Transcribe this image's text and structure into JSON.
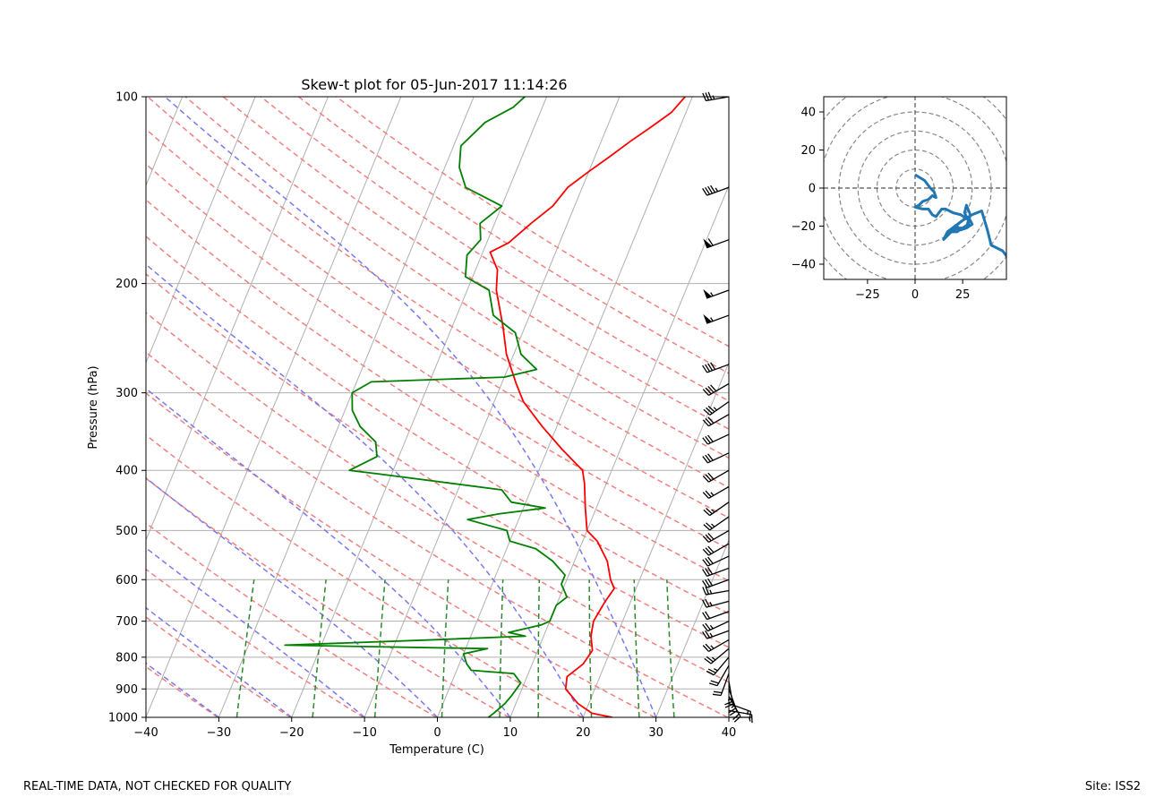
{
  "footer": {
    "disclaimer": "REAL-TIME DATA, NOT CHECKED FOR QUALITY",
    "site": "Site: ISS2"
  },
  "colors": {
    "temperature": "#ff0000",
    "dewpoint": "#008000",
    "dry_adiabat": "#f08080",
    "moist_adiabat": "#7878f0",
    "mixing_ratio": "#2a8a2a",
    "hodograph": "#1f77b4",
    "grid": "#b0b0b0",
    "barb": "#000000"
  },
  "chart_data": [
    {
      "type": "skew-t",
      "title": "Skew-t plot for 05-Jun-2017 11:14:26",
      "xlabel": "Temperature (C)",
      "ylabel": "Pressure (hPa)",
      "xlim": [
        -40,
        40
      ],
      "ylim": [
        1000,
        100
      ],
      "x_ticks": [
        -40,
        -30,
        -20,
        -10,
        0,
        10,
        20,
        30,
        40
      ],
      "y_ticks": [
        100,
        200,
        300,
        400,
        500,
        600,
        700,
        800,
        900,
        1000
      ],
      "grid": true,
      "dry_adiabats_theta_K": [
        243,
        253,
        263,
        273,
        283,
        293,
        303,
        313,
        323,
        333,
        343,
        353,
        363,
        373,
        383,
        393,
        403,
        413,
        423,
        433
      ],
      "moist_adiabats_start_C": [
        -30,
        -20,
        -10,
        0,
        10,
        20,
        30
      ],
      "mixing_ratio_lines_gkg": [
        0.4,
        1,
        2,
        4,
        7,
        10,
        16,
        24,
        32
      ],
      "series": [
        {
          "name": "temperature",
          "points": [
            [
              24,
              1000
            ],
            [
              21,
              985
            ],
            [
              18.5,
              950
            ],
            [
              16,
              900
            ],
            [
              15.5,
              860
            ],
            [
              17,
              820
            ],
            [
              17.5,
              780
            ],
            [
              16.5,
              740
            ],
            [
              16,
              700
            ],
            [
              16.5,
              650
            ],
            [
              17,
              620
            ],
            [
              16,
              600
            ],
            [
              14.5,
              560
            ],
            [
              12,
              520
            ],
            [
              10,
              500
            ],
            [
              8.5,
              460
            ],
            [
              7,
              420
            ],
            [
              6,
              400
            ],
            [
              2,
              370
            ],
            [
              -2,
              340
            ],
            [
              -6,
              310
            ],
            [
              -8,
              290
            ],
            [
              -11,
              260
            ],
            [
              -13,
              235
            ],
            [
              -16,
              205
            ],
            [
              -17,
              190
            ],
            [
              -19,
              178
            ],
            [
              -17,
              172
            ],
            [
              -15,
              160
            ],
            [
              -13,
              150
            ],
            [
              -12,
              140
            ],
            [
              -10,
              132
            ],
            [
              -8,
              125
            ],
            [
              -6,
              118
            ],
            [
              -4,
              112
            ],
            [
              -2,
              106
            ],
            [
              -1,
              100
            ]
          ]
        },
        {
          "name": "dewpoint",
          "points": [
            [
              7,
              1000
            ],
            [
              7.5,
              985
            ],
            [
              8.5,
              950
            ],
            [
              9,
              920
            ],
            [
              9.5,
              880
            ],
            [
              8,
              850
            ],
            [
              2,
              840
            ],
            [
              1,
              820
            ],
            [
              0,
              790
            ],
            [
              3,
              775
            ],
            [
              -25,
              765
            ],
            [
              -5,
              750
            ],
            [
              7.5,
              740
            ],
            [
              5,
              730
            ],
            [
              9,
              710
            ],
            [
              10,
              700
            ],
            [
              10,
              660
            ],
            [
              11,
              640
            ],
            [
              9.5,
              610
            ],
            [
              9.5,
              590
            ],
            [
              7,
              560
            ],
            [
              4,
              535
            ],
            [
              0,
              520
            ],
            [
              -1,
              500
            ],
            [
              -4,
              490
            ],
            [
              -7,
              480
            ],
            [
              -3,
              470
            ],
            [
              3,
              460
            ],
            [
              -2,
              450
            ],
            [
              -4,
              430
            ],
            [
              -22,
              405
            ],
            [
              -26,
              400
            ],
            [
              -23,
              380
            ],
            [
              -24,
              360
            ],
            [
              -27,
              340
            ],
            [
              -29,
              320
            ],
            [
              -30,
              300
            ],
            [
              -28,
              288
            ],
            [
              -10,
              283
            ],
            [
              -6,
              275
            ],
            [
              -9,
              260
            ],
            [
              -11,
              240
            ],
            [
              -15,
              225
            ],
            [
              -17,
              205
            ],
            [
              -21,
              195
            ],
            [
              -22,
              180
            ],
            [
              -21,
              170
            ],
            [
              -22,
              160
            ],
            [
              -20,
              150
            ],
            [
              -26,
              140
            ],
            [
              -28,
              130
            ],
            [
              -29,
              120
            ],
            [
              -27,
              110
            ],
            [
              -24,
              104
            ],
            [
              -23,
              100
            ]
          ]
        }
      ]
    },
    {
      "type": "hodograph",
      "xlim": [
        -48,
        48
      ],
      "ylim": [
        -48,
        48
      ],
      "x_ticks": [
        -25,
        0,
        25
      ],
      "y_ticks": [
        -40,
        -20,
        0,
        20,
        40
      ],
      "ring_radii": [
        10,
        20,
        30,
        40,
        50,
        60,
        70
      ],
      "points": [
        [
          0,
          7
        ],
        [
          5,
          4
        ],
        [
          8,
          0
        ],
        [
          10,
          -2
        ],
        [
          11,
          -5
        ],
        [
          9,
          -4
        ],
        [
          7,
          -6
        ],
        [
          4,
          -7
        ],
        [
          2,
          -9
        ],
        [
          0,
          -10
        ],
        [
          4,
          -11
        ],
        [
          7,
          -11
        ],
        [
          9,
          -14
        ],
        [
          11,
          -15
        ],
        [
          14,
          -11
        ],
        [
          16,
          -11
        ],
        [
          20,
          -13
        ],
        [
          24,
          -14
        ],
        [
          27,
          -16
        ],
        [
          29,
          -17
        ],
        [
          30,
          -19
        ],
        [
          27,
          -21
        ],
        [
          24,
          -22
        ],
        [
          22,
          -20
        ],
        [
          19,
          -22
        ],
        [
          24,
          -21
        ],
        [
          27,
          -21
        ],
        [
          28,
          -17
        ],
        [
          26,
          -13
        ],
        [
          27,
          -9
        ],
        [
          29,
          -14
        ],
        [
          28,
          -19
        ],
        [
          25,
          -21
        ],
        [
          22,
          -23
        ],
        [
          19,
          -23
        ],
        [
          15,
          -27
        ],
        [
          17,
          -23
        ],
        [
          21,
          -20
        ],
        [
          25,
          -17
        ],
        [
          30,
          -14
        ],
        [
          35,
          -12
        ],
        [
          38,
          -22
        ],
        [
          40,
          -30
        ],
        [
          46,
          -33
        ],
        [
          49,
          -37
        ]
      ]
    },
    {
      "type": "wind-barbs",
      "unit": "knots",
      "levels": [
        {
          "p": 1000,
          "speed": 5,
          "dir": 90
        },
        {
          "p": 975,
          "speed": 10,
          "dir": 100
        },
        {
          "p": 950,
          "speed": 15,
          "dir": 110
        },
        {
          "p": 925,
          "speed": 20,
          "dir": 150
        },
        {
          "p": 900,
          "speed": 25,
          "dir": 160
        },
        {
          "p": 875,
          "speed": 25,
          "dir": 170
        },
        {
          "p": 850,
          "speed": 20,
          "dir": 200
        },
        {
          "p": 825,
          "speed": 20,
          "dir": 210
        },
        {
          "p": 800,
          "speed": 25,
          "dir": 220
        },
        {
          "p": 775,
          "speed": 25,
          "dir": 230
        },
        {
          "p": 750,
          "speed": 25,
          "dir": 240
        },
        {
          "p": 725,
          "speed": 25,
          "dir": 250
        },
        {
          "p": 700,
          "speed": 25,
          "dir": 245
        },
        {
          "p": 675,
          "speed": 20,
          "dir": 250
        },
        {
          "p": 650,
          "speed": 25,
          "dir": 255
        },
        {
          "p": 625,
          "speed": 25,
          "dir": 260
        },
        {
          "p": 600,
          "speed": 30,
          "dir": 250
        },
        {
          "p": 575,
          "speed": 30,
          "dir": 250
        },
        {
          "p": 550,
          "speed": 30,
          "dir": 245
        },
        {
          "p": 525,
          "speed": 30,
          "dir": 240
        },
        {
          "p": 500,
          "speed": 30,
          "dir": 240
        },
        {
          "p": 475,
          "speed": 25,
          "dir": 235
        },
        {
          "p": 450,
          "speed": 25,
          "dir": 235
        },
        {
          "p": 425,
          "speed": 25,
          "dir": 240
        },
        {
          "p": 400,
          "speed": 30,
          "dir": 240
        },
        {
          "p": 375,
          "speed": 30,
          "dir": 245
        },
        {
          "p": 350,
          "speed": 30,
          "dir": 245
        },
        {
          "p": 325,
          "speed": 30,
          "dir": 240
        },
        {
          "p": 310,
          "speed": 35,
          "dir": 235
        },
        {
          "p": 290,
          "speed": 40,
          "dir": 240
        },
        {
          "p": 270,
          "speed": 40,
          "dir": 250
        },
        {
          "p": 225,
          "speed": 55,
          "dir": 250
        },
        {
          "p": 205,
          "speed": 55,
          "dir": 250
        },
        {
          "p": 170,
          "speed": 60,
          "dir": 250
        },
        {
          "p": 140,
          "speed": 45,
          "dir": 250
        },
        {
          "p": 100,
          "speed": 35,
          "dir": 260
        }
      ]
    }
  ]
}
